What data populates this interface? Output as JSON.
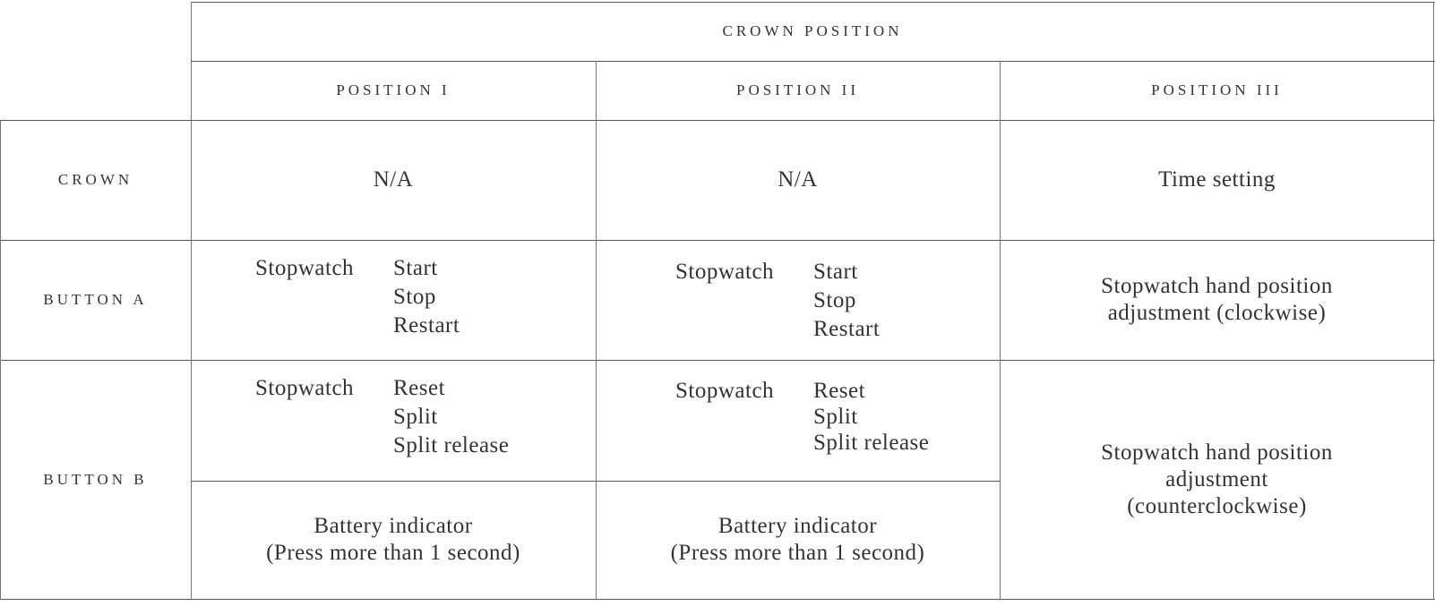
{
  "header": {
    "group": "CROWN POSITION",
    "positions": [
      "POSITION I",
      "POSITION II",
      "POSITION III"
    ]
  },
  "rows": {
    "crown": {
      "label": "CROWN",
      "p1": "N/A",
      "p2": "N/A",
      "p3": "Time setting"
    },
    "button_a": {
      "label": "BUTTON A",
      "p1": {
        "title": "Stopwatch",
        "actions": [
          "Start",
          "Stop",
          "Restart"
        ]
      },
      "p2": {
        "title": "Stopwatch",
        "actions": [
          "Start",
          "Stop",
          "Restart"
        ]
      },
      "p3": [
        "Stopwatch hand position",
        "adjustment (clockwise)"
      ]
    },
    "button_b": {
      "label": "BUTTON B",
      "p1": {
        "title": "Stopwatch",
        "actions": [
          "Reset",
          "Split",
          "Split release"
        ]
      },
      "p2": {
        "title": "Stopwatch",
        "actions": [
          "Reset",
          "Split",
          "Split release"
        ]
      },
      "p1_long": [
        "Battery indicator",
        "(Press more than 1 second)"
      ],
      "p2_long": [
        "Battery indicator",
        "(Press more than 1 second)"
      ],
      "p3": [
        "Stopwatch hand position",
        "adjustment",
        "(counterclockwise)"
      ]
    }
  }
}
